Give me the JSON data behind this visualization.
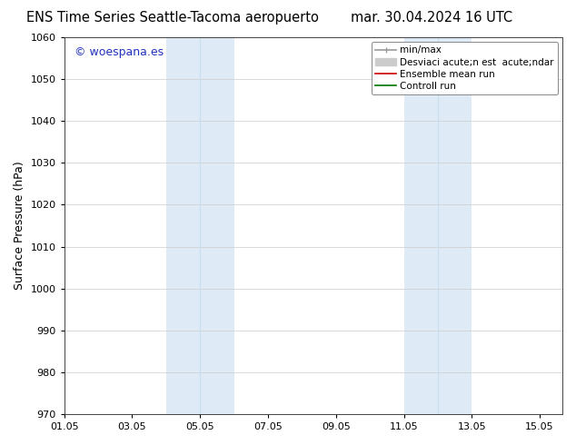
{
  "title_left": "ENS Time Series Seattle-Tacoma aeropuerto",
  "title_right": "mar. 30.04.2024 16 UTC",
  "ylabel": "Surface Pressure (hPa)",
  "ylim": [
    970,
    1060
  ],
  "yticks": [
    970,
    980,
    990,
    1000,
    1010,
    1020,
    1030,
    1040,
    1050,
    1060
  ],
  "xtick_labels": [
    "01.05",
    "03.05",
    "05.05",
    "07.05",
    "09.05",
    "11.05",
    "13.05",
    "15.05"
  ],
  "xtick_positions": [
    0,
    2,
    4,
    6,
    8,
    10,
    12,
    14
  ],
  "xlim": [
    0,
    14.667
  ],
  "shade_bands": [
    {
      "x_start": 3.0,
      "x_end": 4.0,
      "color": "#deeaf5"
    },
    {
      "x_start": 4.0,
      "x_end": 5.0,
      "color": "#deeaf5"
    },
    {
      "x_start": 10.0,
      "x_end": 11.0,
      "color": "#deeaf5"
    },
    {
      "x_start": 11.0,
      "x_end": 12.0,
      "color": "#deeaf5"
    }
  ],
  "band_dividers": [
    4.0,
    11.0
  ],
  "watermark_text": "© woespana.es",
  "watermark_color": "#2233bb",
  "bg_color": "#ffffff",
  "legend_label_1": "min/max",
  "legend_label_2": "Desviaci acute;n est  acute;ndar",
  "legend_label_3": "Ensemble mean run",
  "legend_label_4": "Controll run",
  "legend_color_1": "#999999",
  "legend_color_2": "#cccccc",
  "legend_color_3": "#cc0000",
  "legend_color_4": "#007700",
  "title_fontsize": 10.5,
  "ylabel_fontsize": 9,
  "tick_fontsize": 8,
  "legend_fontsize": 7.5,
  "watermark_fontsize": 9,
  "figsize": [
    6.34,
    4.9
  ],
  "dpi": 100
}
